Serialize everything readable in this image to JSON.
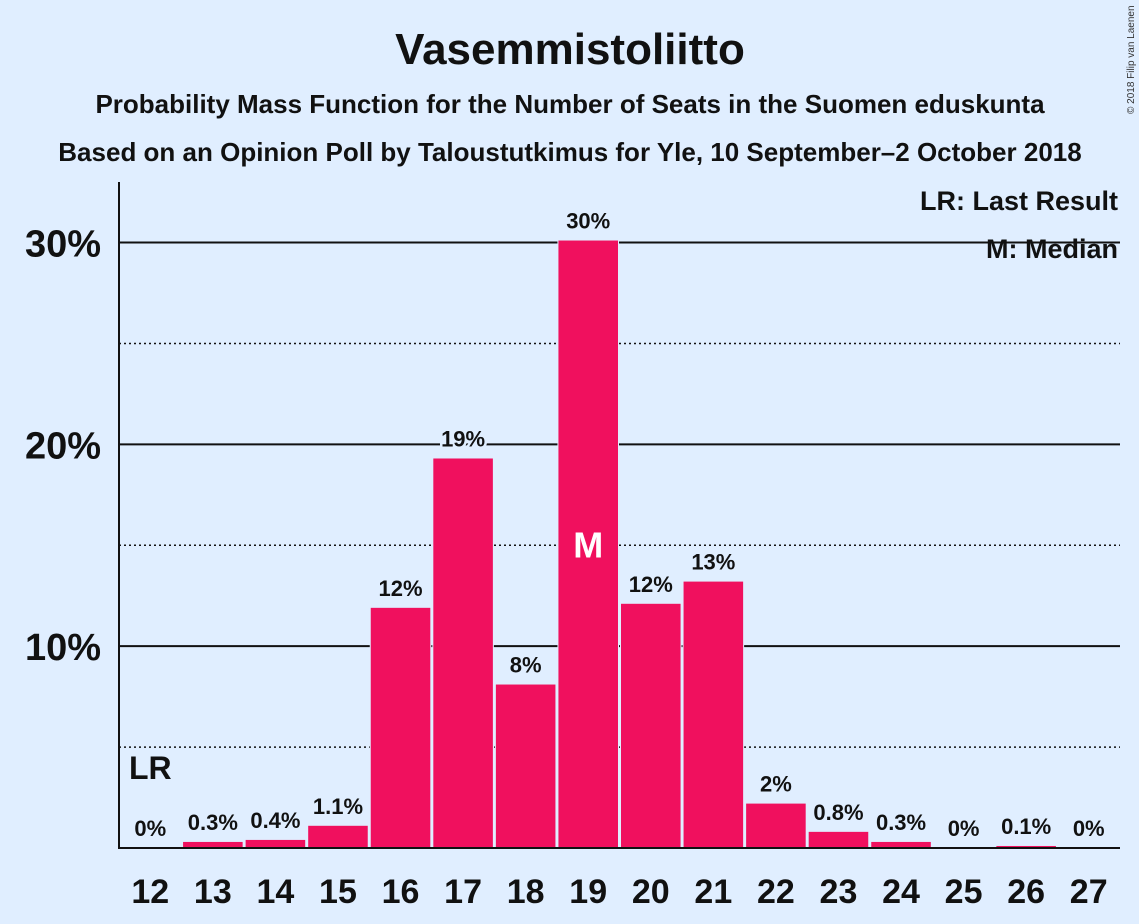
{
  "copyright": "© 2018 Filip van Laenen",
  "chart_data": {
    "type": "bar",
    "title": "Vasemmistoliitto",
    "subtitle": "Probability Mass Function for the Number of Seats in the Suomen eduskunta",
    "subtitle2": "Based on an Opinion Poll by Taloustutkimus for Yle, 10 September–2 October 2018",
    "categories": [
      "12",
      "13",
      "14",
      "15",
      "16",
      "17",
      "18",
      "19",
      "20",
      "21",
      "22",
      "23",
      "24",
      "25",
      "26",
      "27"
    ],
    "values": [
      0,
      0.3,
      0.4,
      1.1,
      11.9,
      19.3,
      8.1,
      30.1,
      12.1,
      13.2,
      2.2,
      0.8,
      0.3,
      0,
      0.1,
      0
    ],
    "value_labels": [
      "0%",
      "0.3%",
      "0.4%",
      "1.1%",
      "12%",
      "19%",
      "8%",
      "30%",
      "12%",
      "13%",
      "2%",
      "0.8%",
      "0.3%",
      "0%",
      "0.1%",
      "0%"
    ],
    "ylim": [
      0,
      33
    ],
    "yticks": [
      10,
      20,
      30
    ],
    "ytick_labels": [
      "10%",
      "20%",
      "30%"
    ],
    "minor_gridlines": [
      5,
      15,
      25
    ],
    "grid": true,
    "bar_color": "#f0105e",
    "last_result": {
      "category": "12",
      "label": "LR"
    },
    "median": {
      "category": "19",
      "label": "M"
    },
    "legend": {
      "position": "top-right",
      "items": [
        "LR: Last Result",
        "M: Median"
      ]
    }
  }
}
